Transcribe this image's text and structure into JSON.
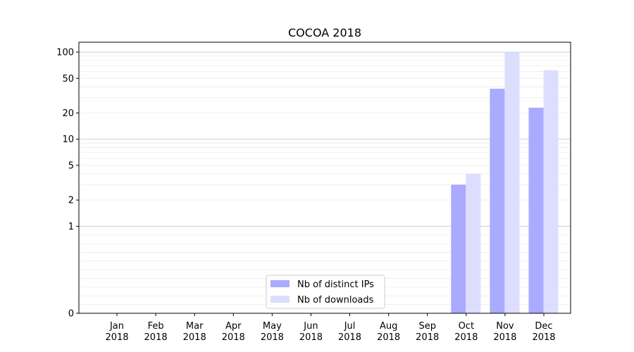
{
  "chart_data": {
    "type": "bar",
    "title": "COCOA 2018",
    "xlabel": "",
    "ylabel": "",
    "y_scale": "symlog",
    "ylim": [
      0,
      130
    ],
    "y_ticks": [
      0,
      1,
      2,
      5,
      10,
      20,
      50,
      100
    ],
    "grid": true,
    "legend_position": "lower center",
    "categories": [
      [
        "Jan",
        "2018"
      ],
      [
        "Feb",
        "2018"
      ],
      [
        "Mar",
        "2018"
      ],
      [
        "Apr",
        "2018"
      ],
      [
        "May",
        "2018"
      ],
      [
        "Jun",
        "2018"
      ],
      [
        "Jul",
        "2018"
      ],
      [
        "Aug",
        "2018"
      ],
      [
        "Sep",
        "2018"
      ],
      [
        "Oct",
        "2018"
      ],
      [
        "Nov",
        "2018"
      ],
      [
        "Dec",
        "2018"
      ]
    ],
    "series": [
      {
        "name": "Nb of distinct IPs",
        "color": "#aaaaff",
        "values": [
          0,
          0,
          0,
          0,
          0,
          0,
          0,
          0,
          0,
          3,
          38,
          23
        ]
      },
      {
        "name": "Nb of downloads",
        "color": "#ddddff",
        "values": [
          0,
          0,
          0,
          0,
          0,
          0,
          0,
          0,
          0,
          4,
          100,
          62
        ]
      }
    ]
  }
}
